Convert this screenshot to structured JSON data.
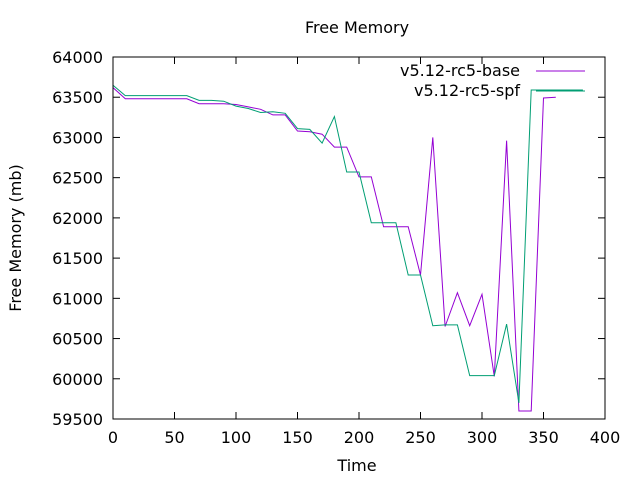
{
  "chart_data": {
    "type": "line",
    "title": "Free Memory",
    "xlabel": "Time",
    "ylabel": "Free Memory (mb)",
    "xlim": [
      0,
      400
    ],
    "ylim": [
      59500,
      64000
    ],
    "xticks": [
      0,
      50,
      100,
      150,
      200,
      250,
      300,
      350,
      400
    ],
    "yticks": [
      59500,
      60000,
      60500,
      61000,
      61500,
      62000,
      62500,
      63000,
      63500,
      64000
    ],
    "grid": false,
    "legend_position": "top-right",
    "series": [
      {
        "name": "v5.12-rc5-base",
        "color": "#9400d3",
        "points": [
          [
            0,
            63620
          ],
          [
            10,
            63480
          ],
          [
            20,
            63480
          ],
          [
            30,
            63480
          ],
          [
            40,
            63480
          ],
          [
            50,
            63480
          ],
          [
            60,
            63480
          ],
          [
            70,
            63420
          ],
          [
            80,
            63420
          ],
          [
            90,
            63420
          ],
          [
            100,
            63410
          ],
          [
            110,
            63380
          ],
          [
            120,
            63350
          ],
          [
            130,
            63280
          ],
          [
            140,
            63280
          ],
          [
            150,
            63080
          ],
          [
            160,
            63070
          ],
          [
            170,
            63040
          ],
          [
            180,
            62880
          ],
          [
            190,
            62880
          ],
          [
            200,
            62510
          ],
          [
            210,
            62510
          ],
          [
            220,
            61890
          ],
          [
            230,
            61890
          ],
          [
            240,
            61890
          ],
          [
            250,
            61290
          ],
          [
            260,
            63000
          ],
          [
            270,
            60650
          ],
          [
            280,
            61070
          ],
          [
            290,
            60660
          ],
          [
            300,
            61050
          ],
          [
            310,
            60030
          ],
          [
            320,
            62960
          ],
          [
            330,
            59600
          ],
          [
            340,
            59600
          ],
          [
            350,
            63490
          ],
          [
            360,
            63500
          ]
        ]
      },
      {
        "name": "v5.12-rc5-spf",
        "color": "#009e73",
        "points": [
          [
            0,
            63650
          ],
          [
            10,
            63520
          ],
          [
            20,
            63520
          ],
          [
            30,
            63520
          ],
          [
            40,
            63520
          ],
          [
            50,
            63520
          ],
          [
            60,
            63520
          ],
          [
            70,
            63460
          ],
          [
            80,
            63460
          ],
          [
            90,
            63450
          ],
          [
            100,
            63390
          ],
          [
            110,
            63360
          ],
          [
            120,
            63310
          ],
          [
            130,
            63320
          ],
          [
            140,
            63300
          ],
          [
            150,
            63110
          ],
          [
            160,
            63100
          ],
          [
            170,
            62930
          ],
          [
            180,
            63260
          ],
          [
            190,
            62570
          ],
          [
            200,
            62570
          ],
          [
            210,
            61940
          ],
          [
            220,
            61940
          ],
          [
            230,
            61940
          ],
          [
            240,
            61290
          ],
          [
            250,
            61290
          ],
          [
            260,
            60660
          ],
          [
            270,
            60670
          ],
          [
            280,
            60670
          ],
          [
            290,
            60040
          ],
          [
            300,
            60040
          ],
          [
            310,
            60040
          ],
          [
            320,
            60680
          ],
          [
            330,
            59700
          ],
          [
            340,
            63590
          ],
          [
            350,
            63590
          ],
          [
            360,
            63590
          ],
          [
            370,
            63590
          ],
          [
            382,
            63590
          ]
        ]
      }
    ]
  }
}
